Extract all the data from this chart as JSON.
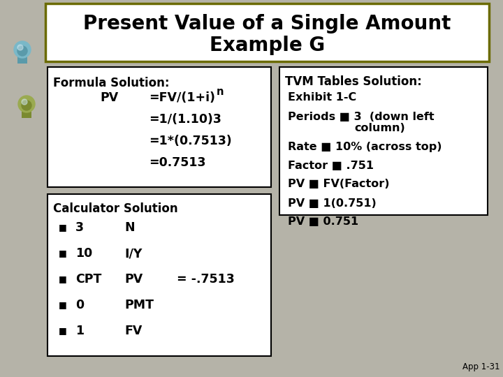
{
  "title_line1": "Present Value of a Single Amount",
  "title_line2": "Example G",
  "title_bg": "#ffffff",
  "title_border": "#6b6b00",
  "title_fontsize": 20,
  "bg_color": "#b5b3a8",
  "formula_header": "Formula Solution:",
  "formula_line1_left": "PV",
  "formula_line1_mid": "=FV/(1+i)",
  "formula_line1_sup": "n",
  "formula_lines_rest": [
    "=1/(1.10)3",
    "=1*(0.7513)",
    "=0.7513"
  ],
  "calc_header": "Calculator Solution",
  "calc_lines": [
    [
      "3",
      "N",
      ""
    ],
    [
      "10",
      "I/Y",
      ""
    ],
    [
      "CPT",
      "PV",
      "= -.7513"
    ],
    [
      "0",
      "PMT",
      ""
    ],
    [
      "1",
      "FV",
      ""
    ]
  ],
  "tvm_header": "TVM Tables Solution:",
  "tvm_line1": "Exhibit 1-C",
  "tvm_line2a": "Periods ■ 3  (down left",
  "tvm_line2b": "column)",
  "tvm_line3": "Rate ■ 10% (across top)",
  "tvm_line4": "Factor ■ .751",
  "tvm_line5": "PV ■ FV(Factor)",
  "tvm_line6": "PV ■ 1(0.751)",
  "tvm_line7": "PV ■ 0.751",
  "page_ref": "App 1-31",
  "box_bg": "#ffffff",
  "box_border": "#000000",
  "font_color": "#000000",
  "body_fontsize": 11.5,
  "header_fontsize": 12,
  "title_fw": "bold"
}
